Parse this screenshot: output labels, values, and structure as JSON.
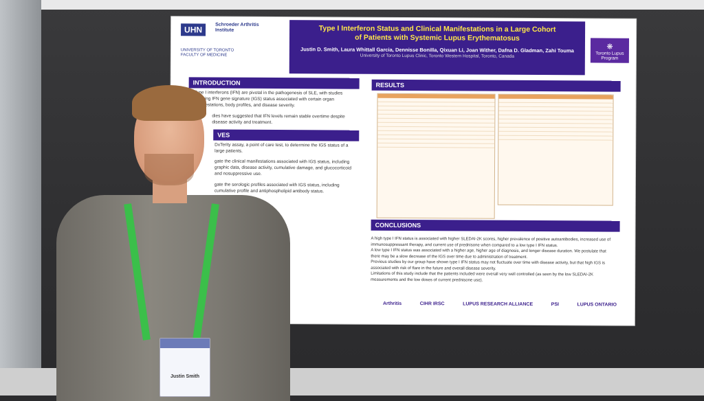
{
  "poster": {
    "title_line1": "Type I Interferon Status and Clinical Manifestations in a Large Cohort",
    "title_line2": "of Patients with Systemic Lupus Erythematosus",
    "authors": "Justin D. Smith, Laura Whittall Garcia, Dennisse Bonilla, Qixuan Li, Joan Wither, Dafna D. Gladman, Zahi Touma",
    "affiliation": "University of Toronto Lupus Clinic, Toronto Western Hospital, Toronto, Canada",
    "logo_uhn": "UHN",
    "logo_schroeder": "Schroeder Arthritis Institute",
    "logo_uoft": "UNIVERSITY OF TORONTO FACULTY OF MEDICINE",
    "logo_tlp": "Toronto Lupus Program",
    "sections": {
      "introduction": "INTRODUCTION",
      "objectives": "VES",
      "results": "RESULTS",
      "conclusions": "CONCLUSIONS"
    },
    "intro_text": "Type I interferons (IFN) are pivotal in the pathogenesis of SLE, with studies showing IFN gene signature (IGS) status associated with certain organ manifestations, body profiles, and disease severity.",
    "intro_text2": "dies have suggested that IFN levels remain stable overtime despite disease activity and treatment.",
    "obj_text1": "DxTerity assay, a point of care test, to determine the IGS status of a large patients.",
    "obj_text2": "gate the clinical manifestations associated with IGS status, including graphic data, disease activity, cumulative damage, and glucocorticoid and nosuppressive use.",
    "obj_text3": "gate the serologic profiles associated with IGS status, including cumulative profile and antiphospholipid antibody status.",
    "conclusions": [
      "A high type I IFN status is associated with higher SLEDAI-2K scores, higher prevalence of positive autoantibodies, increased use of immunosuppressant therapy, and current use of prednisone when compared to a low type I IFN status.",
      "A low type I IFN status was associated with a higher age, higher age of diagnosis, and longer disease duration. We postulate that there may be a slow decrease of the IGS over time due to administration of treatment.",
      "Previous studies by our group have shown type I IFN status may not fluctuate over time with disease activity, but that high IGS is associated with risk of flare in the future and overall disease severity.",
      "Limitations of this study include that the patients included were overall very well controlled (as seen by the low SLEDAI-2K measurements and the low doses of current prednisone use)."
    ],
    "sponsors": [
      "Arthritis",
      "CIHR IRSC",
      "LUPUS RESEARCH ALLIANCE",
      "PSI",
      "LUPUS ONTARIO"
    ]
  },
  "badge": {
    "name": "Justin Smith"
  }
}
